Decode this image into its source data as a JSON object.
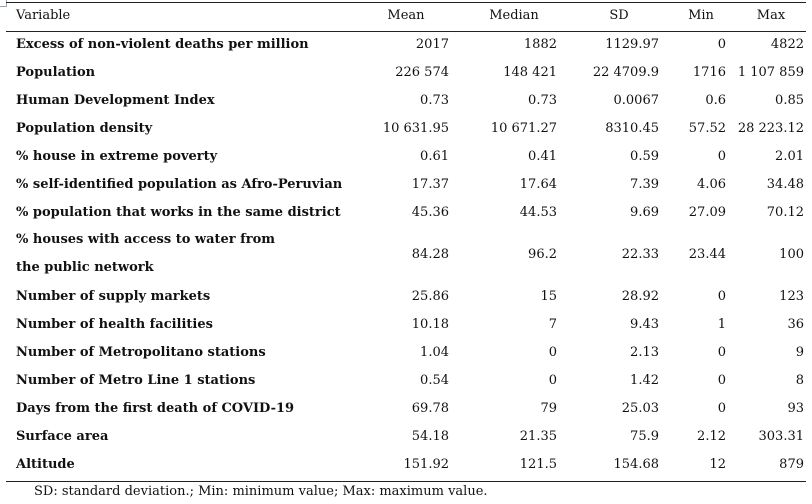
{
  "table": {
    "headers": [
      "Variable",
      "Mean",
      "Median",
      "SD",
      "Min",
      "Max"
    ],
    "rows": [
      {
        "label": "Excess of non-violent deaths per million",
        "values": [
          "2017",
          "1882",
          "1129.97",
          "0",
          "4822"
        ]
      },
      {
        "label": "Population",
        "values": [
          "226 574",
          "148 421",
          "22 4709.9",
          "1716",
          "1 107 859"
        ]
      },
      {
        "label": "Human Development Index",
        "values": [
          "0.73",
          "0.73",
          "0.0067",
          "0.6",
          "0.85"
        ]
      },
      {
        "label": "Population density",
        "values": [
          "10 631.95",
          "10 671.27",
          "8310.45",
          "57.52",
          "28 223.12"
        ]
      },
      {
        "label": "% house in extreme poverty",
        "values": [
          "0.61",
          "0.41",
          "0.59",
          "0",
          "2.01"
        ]
      },
      {
        "label": "% self-identified population as Afro-Peruvian",
        "values": [
          "17.37",
          "17.64",
          "7.39",
          "4.06",
          "34.48"
        ]
      },
      {
        "label": "% population that works in the same district",
        "values": [
          "45.36",
          "44.53",
          "9.69",
          "27.09",
          "70.12"
        ]
      },
      {
        "label": "% houses with access to water from the public network",
        "values": [
          "84.28",
          "96.2",
          "22.33",
          "23.44",
          "100"
        ]
      },
      {
        "label": "Number of supply markets",
        "values": [
          "25.86",
          "15",
          "28.92",
          "0",
          "123"
        ]
      },
      {
        "label": "Number of health facilities",
        "values": [
          "10.18",
          "7",
          "9.43",
          "1",
          "36"
        ]
      },
      {
        "label": "Number of Metropolitano stations",
        "values": [
          "1.04",
          "0",
          "2.13",
          "0",
          "9"
        ]
      },
      {
        "label": "Number of Metro Line 1 stations",
        "values": [
          "0.54",
          "0",
          "1.42",
          "0",
          "8"
        ]
      },
      {
        "label": "Days from the first death of COVID-19",
        "values": [
          "69.78",
          "79",
          "25.03",
          "0",
          "93"
        ]
      },
      {
        "label": "Surface area",
        "values": [
          "54.18",
          "21.35",
          "75.9",
          "2.12",
          "303.31"
        ]
      },
      {
        "label": "Altitude",
        "values": [
          "151.92",
          "121.5",
          "154.68",
          "12",
          "879"
        ]
      }
    ]
  },
  "footnote": "SD: standard deviation.; Min: minimum value; Max: maximum value."
}
